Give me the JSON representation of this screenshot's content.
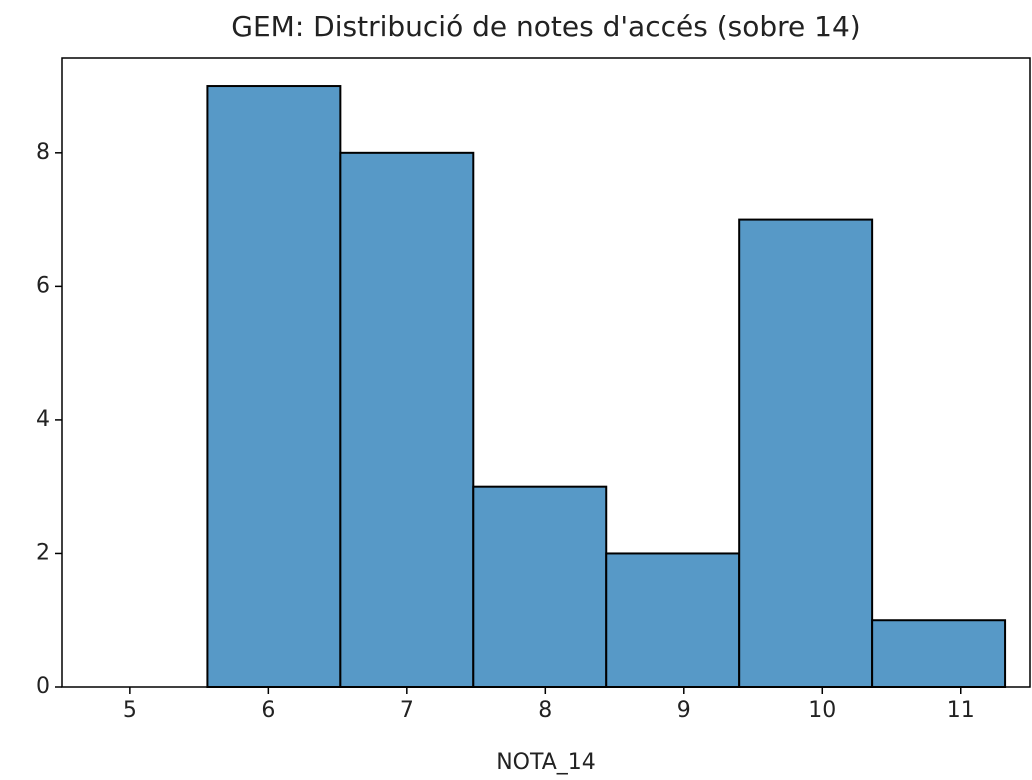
{
  "chart_data": {
    "type": "histogram",
    "title": "GEM: Distribució de notes d'accés (sobre 14)",
    "x_label": "NOTA_14",
    "bins": [
      5.56,
      6.52,
      7.48,
      8.44,
      9.4,
      10.36,
      11.32
    ],
    "values": [
      9,
      8,
      3,
      2,
      7,
      1
    ],
    "color": "#5799c7",
    "edgecolor": "#000000",
    "xlim": [
      4.51,
      11.5
    ],
    "xticks": [
      5,
      6,
      7,
      8,
      9,
      10,
      11
    ],
    "ylim": [
      0,
      9.42
    ],
    "yticks": [
      0,
      2,
      4,
      6,
      8
    ]
  }
}
